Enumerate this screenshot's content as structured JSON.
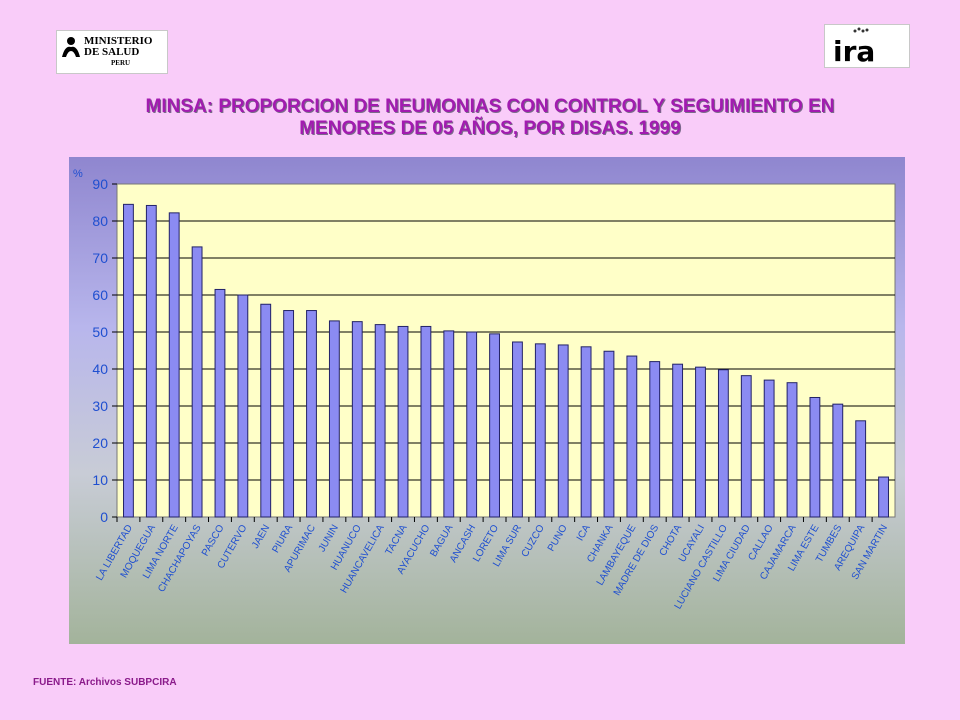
{
  "logos": {
    "left": {
      "line1": "MINISTERIO",
      "line2": "DE SALUD",
      "line3": "PERU"
    },
    "right": {
      "text": "ira"
    }
  },
  "title": {
    "line1": "MINSA: PROPORCION DE NEUMONIAS CON CONTROL Y SEGUIMIENTO EN",
    "line2": "MENORES DE 05 AÑOS, POR DISAS.  1999"
  },
  "source": "FUENTE: Archivos SUBPCIRA",
  "colors": {
    "background": "#f9ccf9",
    "title": "#a21bb0",
    "bar_fill": "#8b8bf2",
    "bar_stroke": "#222266",
    "plot_bg": "#ffffc8",
    "axis_text": "#1f4fd0"
  },
  "chart_data": {
    "type": "bar",
    "title": "MINSA: PROPORCION DE NEUMONIAS CON CONTROL Y SEGUIMIENTO EN MENORES DE 05 AÑOS, POR DISAS.  1999",
    "ylabel": "%",
    "xlabel": "",
    "ylim": [
      0,
      90
    ],
    "yticks": [
      0,
      10,
      20,
      30,
      40,
      50,
      60,
      70,
      80,
      90
    ],
    "grid": true,
    "legend": "none",
    "categories": [
      "LA LIBERTAD",
      "MOQUEGUA",
      "LIMA NORTE",
      "CHACHAPOYAS",
      "PASCO",
      "CUTERVO",
      "JAEN",
      "PIURA",
      "APURIMAC",
      "JUNIN",
      "HUANUCO",
      "HUANCAVELICA",
      "TACNA",
      "AYACUCHO",
      "BAGUA",
      "ANCASH",
      "LORETO",
      "LIMA SUR",
      "CUZCO",
      "PUNO",
      "ICA",
      "CHANKA",
      "LAMBAYEQUE",
      "MADRE DE DIOS",
      "CHOTA",
      "UCAYALI",
      "LUCIANO CASTILLO",
      "LIMA CIUDAD",
      "CALLAO",
      "CAJAMARCA",
      "LIMA ESTE",
      "TUMBES",
      "AREQUIPA",
      "SAN MARTIN"
    ],
    "values": [
      84.5,
      84.2,
      82.2,
      73.0,
      61.5,
      60.0,
      57.5,
      55.8,
      55.8,
      53.0,
      52.8,
      52.0,
      51.5,
      51.5,
      50.3,
      50.0,
      49.5,
      47.3,
      46.8,
      46.5,
      46.0,
      44.8,
      43.5,
      42.0,
      41.3,
      40.5,
      39.8,
      38.2,
      37.0,
      36.3,
      32.3,
      30.5,
      26.0,
      10.8
    ]
  }
}
